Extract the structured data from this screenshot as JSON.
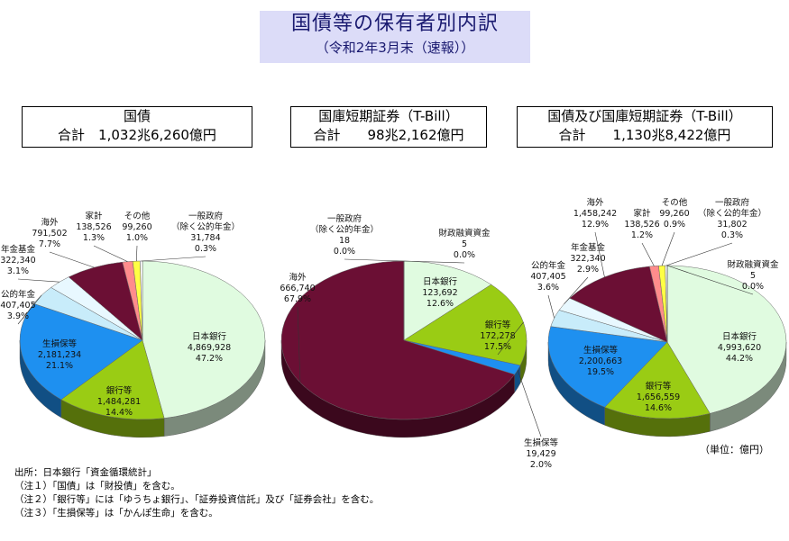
{
  "title": "国債等の保有者別内訳",
  "subtitle": "（令和2年3月末（速報））",
  "summaries": [
    {
      "heading": "国債",
      "total": "合計　1,032兆6,260億円"
    },
    {
      "heading": "国庫短期証券（T-Bill）",
      "total": "合計　　98兆2,162億円"
    },
    {
      "heading": "国債及び国庫短期証券（T-Bill）",
      "total": "合計　　1,130兆8,422億円"
    }
  ],
  "unit": "（単位：億円）",
  "notes": [
    "出所：日本銀行「資金循環統計」",
    "（注１）「国債」は「財投債」を含む。",
    "（注２）「銀行等」には「ゆうちょ銀行」、「証券投資信託」及び「証券会社」を含む。",
    "（注３）「生損保等」は「かんぽ生命」を含む。"
  ],
  "colors": {
    "boj": "#e0fbe0",
    "banks": "#9acc14",
    "insurance": "#1e90f0",
    "public_pension": "#c8ecfa",
    "pension_fund": "#e8f8ff",
    "overseas": "#6b0f34",
    "household": "#ff8c8c",
    "other": "#ffff44",
    "gov": "#ffffff",
    "fiscal": "#ffffff"
  },
  "chart_data": [
    {
      "type": "pie",
      "title": "国債",
      "slices": [
        {
          "name": "日本銀行",
          "value": 4869928,
          "pct": "47.2%",
          "color": "boj",
          "value_label": "4,869,928"
        },
        {
          "name": "銀行等",
          "value": 1484281,
          "pct": "14.4%",
          "color": "banks",
          "value_label": "1,484,281"
        },
        {
          "name": "生損保等",
          "value": 2181234,
          "pct": "21.1%",
          "color": "insurance",
          "value_label": "2,181,234"
        },
        {
          "name": "公的年金",
          "value": 407405,
          "pct": "3.9%",
          "color": "public_pension",
          "value_label": "407,405"
        },
        {
          "name": "年金基金",
          "value": 322340,
          "pct": "3.1%",
          "color": "pension_fund",
          "value_label": "322,340"
        },
        {
          "name": "海外",
          "value": 791502,
          "pct": "7.7%",
          "color": "overseas",
          "value_label": "791,502"
        },
        {
          "name": "家計",
          "value": 138526,
          "pct": "1.3%",
          "color": "household",
          "value_label": "138,526"
        },
        {
          "name": "その他",
          "value": 99260,
          "pct": "1.0%",
          "color": "other",
          "value_label": "99,260"
        },
        {
          "name": "一般政府\n（除く公的年金）",
          "value": 31784,
          "pct": "0.3%",
          "color": "gov",
          "value_label": "31,784"
        }
      ]
    },
    {
      "type": "pie",
      "title": "国庫短期証券（T-Bill）",
      "slices": [
        {
          "name": "日本銀行",
          "value": 123692,
          "pct": "12.6%",
          "color": "boj",
          "value_label": "123,692"
        },
        {
          "name": "銀行等",
          "value": 172278,
          "pct": "17.5%",
          "color": "banks",
          "value_label": "172,278"
        },
        {
          "name": "生損保等",
          "value": 19429,
          "pct": "2.0%",
          "color": "insurance",
          "value_label": "19,429"
        },
        {
          "name": "海外",
          "value": 666740,
          "pct": "67.9%",
          "color": "overseas",
          "value_label": "666,740"
        },
        {
          "name": "一般政府\n（除く公的年金）",
          "value": 18,
          "pct": "0.0%",
          "color": "gov",
          "value_label": "18"
        },
        {
          "name": "財政融資資金",
          "value": 5,
          "pct": "0.0%",
          "color": "fiscal",
          "value_label": "5"
        }
      ]
    },
    {
      "type": "pie",
      "title": "国債及び国庫短期証券（T-Bill）",
      "slices": [
        {
          "name": "日本銀行",
          "value": 4993620,
          "pct": "44.2%",
          "color": "boj",
          "value_label": "4,993,620"
        },
        {
          "name": "銀行等",
          "value": 1656559,
          "pct": "14.6%",
          "color": "banks",
          "value_label": "1,656,559"
        },
        {
          "name": "生損保等",
          "value": 2200663,
          "pct": "19.5%",
          "color": "insurance",
          "value_label": "2,200,663"
        },
        {
          "name": "公的年金",
          "value": 407405,
          "pct": "3.6%",
          "color": "public_pension",
          "value_label": "407,405"
        },
        {
          "name": "年金基金",
          "value": 322340,
          "pct": "2.9%",
          "color": "pension_fund",
          "value_label": "322,340"
        },
        {
          "name": "海外",
          "value": 1458242,
          "pct": "12.9%",
          "color": "overseas",
          "value_label": "1,458,242"
        },
        {
          "name": "家計",
          "value": 138526,
          "pct": "1.2%",
          "color": "household",
          "value_label": "138,526"
        },
        {
          "name": "その他",
          "value": 99260,
          "pct": "0.9%",
          "color": "other",
          "value_label": "99,260"
        },
        {
          "name": "一般政府\n（除く公的年金）",
          "value": 31802,
          "pct": "0.3%",
          "color": "gov",
          "value_label": "31,802"
        },
        {
          "name": "財政融資資金",
          "value": 5,
          "pct": "0.0%",
          "color": "fiscal",
          "value_label": "5"
        }
      ]
    }
  ]
}
